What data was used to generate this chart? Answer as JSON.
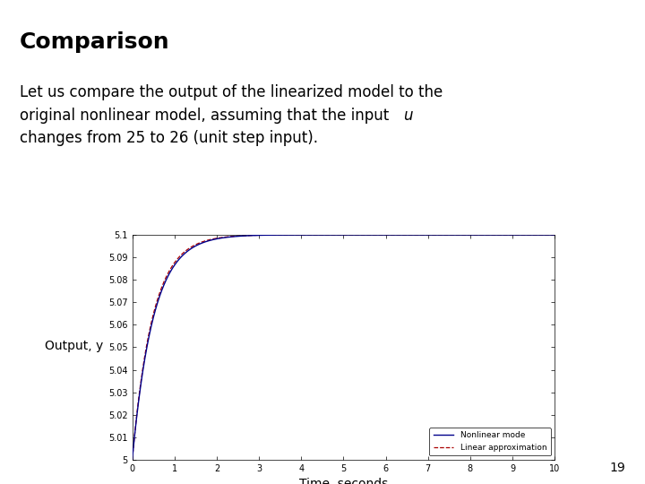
{
  "title": "Comparison",
  "title_fontsize": 18,
  "title_fontweight": "bold",
  "body_fontsize": 12,
  "ylabel": "Output, y",
  "xlabel": "Time, seconds",
  "xlabel_fontsize": 10,
  "ylabel_fontsize": 10,
  "xlim": [
    0,
    10
  ],
  "ylim": [
    5.0,
    5.1
  ],
  "ytick_values": [
    5.0,
    5.01,
    5.02,
    5.03,
    5.04,
    5.05,
    5.06,
    5.07,
    5.08,
    5.09,
    5.1
  ],
  "ytick_labels": [
    "5",
    "5.01",
    "5.02",
    "5.03",
    "5.04",
    "5.05",
    "5.06",
    "5.07",
    "5.08",
    "5.09",
    "5.1"
  ],
  "xtick_values": [
    0,
    1,
    2,
    3,
    4,
    5,
    6,
    7,
    8,
    9,
    10
  ],
  "xtick_labels": [
    "0",
    "1",
    "2",
    "3",
    "4",
    "5",
    "6",
    "7",
    "8",
    "9",
    "10"
  ],
  "legend_labels": [
    "Nonlinear mode",
    "Linear approximation"
  ],
  "nonlinear_color": "#00008B",
  "linear_color": "#AA0000",
  "orange_color": "#E8A020",
  "bg_color": "#ffffff",
  "page_number": "19",
  "tau_nonlinear": 0.5,
  "tau_linear": 0.48,
  "steady_state": 5.1,
  "initial": 5.0,
  "line1": "Let us compare the output of the linearized model to the",
  "line2a": "original nonlinear model, assuming that the input ",
  "line2b": "u",
  "line3": "changes from 25 to 26 (unit step input)."
}
